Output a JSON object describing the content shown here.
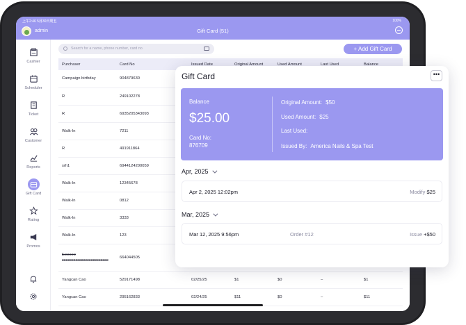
{
  "status_bar": {
    "time": "上午2:46  5月30日周五",
    "battery": "100%"
  },
  "header": {
    "user_name": "admin",
    "title": "Gift Card (51)"
  },
  "sidebar": {
    "items": [
      {
        "label": "Cashier",
        "icon": "cashier-icon",
        "active": false
      },
      {
        "label": "Scheduler",
        "icon": "calendar-icon",
        "active": false
      },
      {
        "label": "Ticket",
        "icon": "ticket-icon",
        "active": false
      },
      {
        "label": "Customer",
        "icon": "customer-icon",
        "active": false
      },
      {
        "label": "Reports",
        "icon": "chart-icon",
        "active": false
      },
      {
        "label": "Gift Card",
        "icon": "gift-card-icon",
        "active": true
      },
      {
        "label": "Rating",
        "icon": "star-icon",
        "active": false
      },
      {
        "label": "Promos",
        "icon": "megaphone-icon",
        "active": false
      }
    ],
    "bottom_icons": [
      "bell-icon",
      "gear-icon"
    ]
  },
  "search": {
    "placeholder": "Search for a name, phone number, card no"
  },
  "add_button": {
    "label": "+ Add Gift Card"
  },
  "table": {
    "headers": [
      "Purchaser",
      "Card No",
      "Issued Date",
      "Original Amount",
      "Used Amount",
      "Last Used",
      "Balance"
    ],
    "rows": [
      {
        "purchaser": "Campaign birthday",
        "card_no": "904879630"
      },
      {
        "purchaser": "R",
        "card_no": "249102278"
      },
      {
        "purchaser": "R",
        "card_no": "6935205343093"
      },
      {
        "purchaser": "Walk-In",
        "card_no": "7211"
      },
      {
        "purchaser": "R",
        "card_no": "491911864"
      },
      {
        "purchaser": "srh1",
        "card_no": "6944124200059"
      },
      {
        "purchaser": "Walk-In",
        "card_no": "12345678"
      },
      {
        "purchaser": "Walk-In",
        "card_no": "0812"
      },
      {
        "purchaser": "Walk-In",
        "card_no": "3333"
      },
      {
        "purchaser": "Walk-In",
        "card_no": "123"
      },
      {
        "purchaser": "Eeeeee",
        "purchaser_sub": "eeeeeeeeeeeeeeeeeeeeeeee",
        "card_no": "664044505"
      },
      {
        "purchaser": "Yangcan Cao",
        "card_no": "529171498",
        "issued": "02/25/25",
        "original": "$1",
        "used": "$0",
        "last_used": "–",
        "balance": "$1"
      },
      {
        "purchaser": "Yangcan Cao",
        "card_no": "295162833",
        "issued": "02/24/25",
        "original": "$11",
        "used": "$0",
        "last_used": "–",
        "balance": "$11"
      }
    ]
  },
  "gift_card": {
    "title": "Gift Card",
    "more_label": "•••",
    "balance_label": "Balance",
    "balance": "$25.00",
    "card_no_label": "Card No:",
    "card_no": "876709",
    "original_label": "Original Amount:",
    "original": "$50",
    "used_label": "Used Amount:",
    "used": "$25",
    "last_used_label": "Last Used:",
    "last_used": "",
    "issued_by_label": "Issued By:",
    "issued_by": "America Nails & Spa Test",
    "history": [
      {
        "month": "Apr, 2025",
        "date": "Apr 2, 2025 12:02pm",
        "mid": "",
        "action": "Modify",
        "amount": "$25"
      },
      {
        "month": "Mar, 2025",
        "date": "Mar 12, 2025 9:56pm",
        "mid": "Order #12",
        "action": "Issue",
        "amount": "+$50"
      }
    ]
  }
}
